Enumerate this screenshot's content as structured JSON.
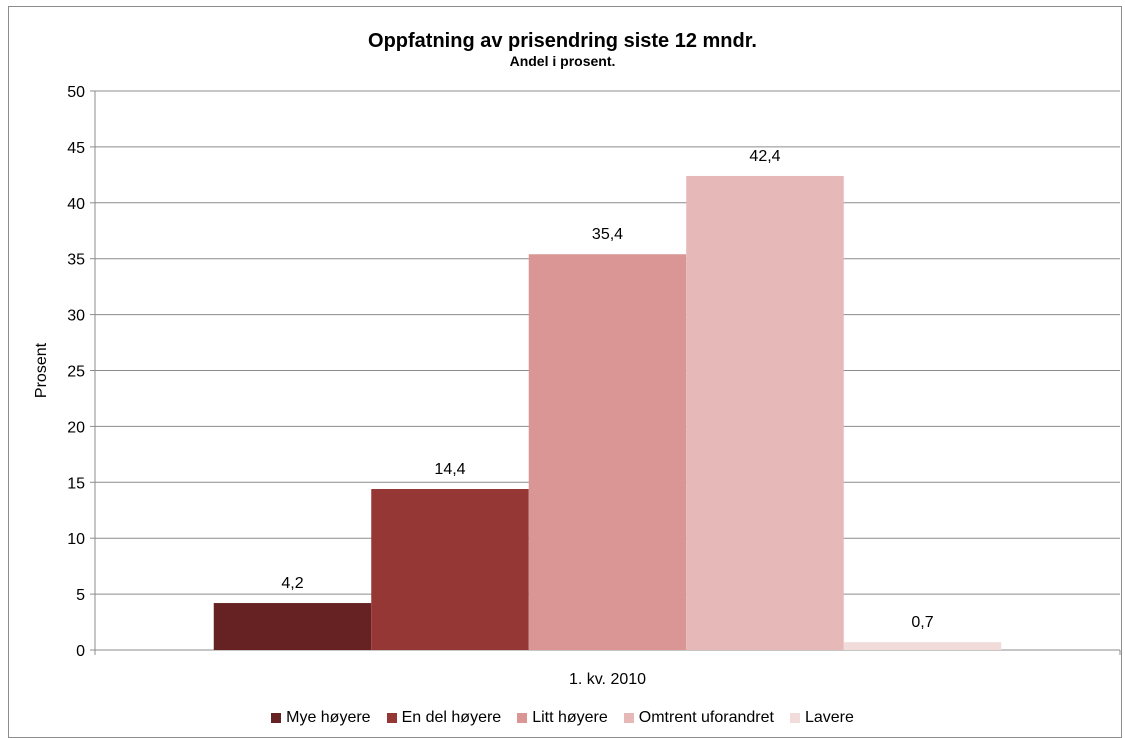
{
  "chart_data": {
    "type": "bar",
    "title": "Oppfatning av prisendring siste 12 mndr.",
    "subtitle": "Andel i prosent.",
    "ylabel": "Prosent",
    "xlabel": "",
    "categories": [
      "1. kv. 2010"
    ],
    "ylim": [
      0,
      50
    ],
    "yticks": [
      0,
      5,
      10,
      15,
      20,
      25,
      30,
      35,
      40,
      45,
      50
    ],
    "ytick_labels": [
      "0",
      "5",
      "10",
      "15",
      "20",
      "25",
      "30",
      "35",
      "40",
      "45",
      "50"
    ],
    "grid": true,
    "legend_position": "bottom",
    "series": [
      {
        "name": "Mye høyere",
        "values": [
          4.2
        ],
        "label": "4,2",
        "color": "#662222"
      },
      {
        "name": "En del høyere",
        "values": [
          14.4
        ],
        "label": "14,4",
        "color": "#953735"
      },
      {
        "name": "Litt høyere",
        "values": [
          35.4
        ],
        "label": "35,4",
        "color": "#d99694"
      },
      {
        "name": "Omtrent uforandret",
        "values": [
          42.4
        ],
        "label": "42,4",
        "color": "#e6b9b8"
      },
      {
        "name": "Lavere",
        "values": [
          0.7
        ],
        "label": "0,7",
        "color": "#f2dcdb"
      }
    ]
  }
}
